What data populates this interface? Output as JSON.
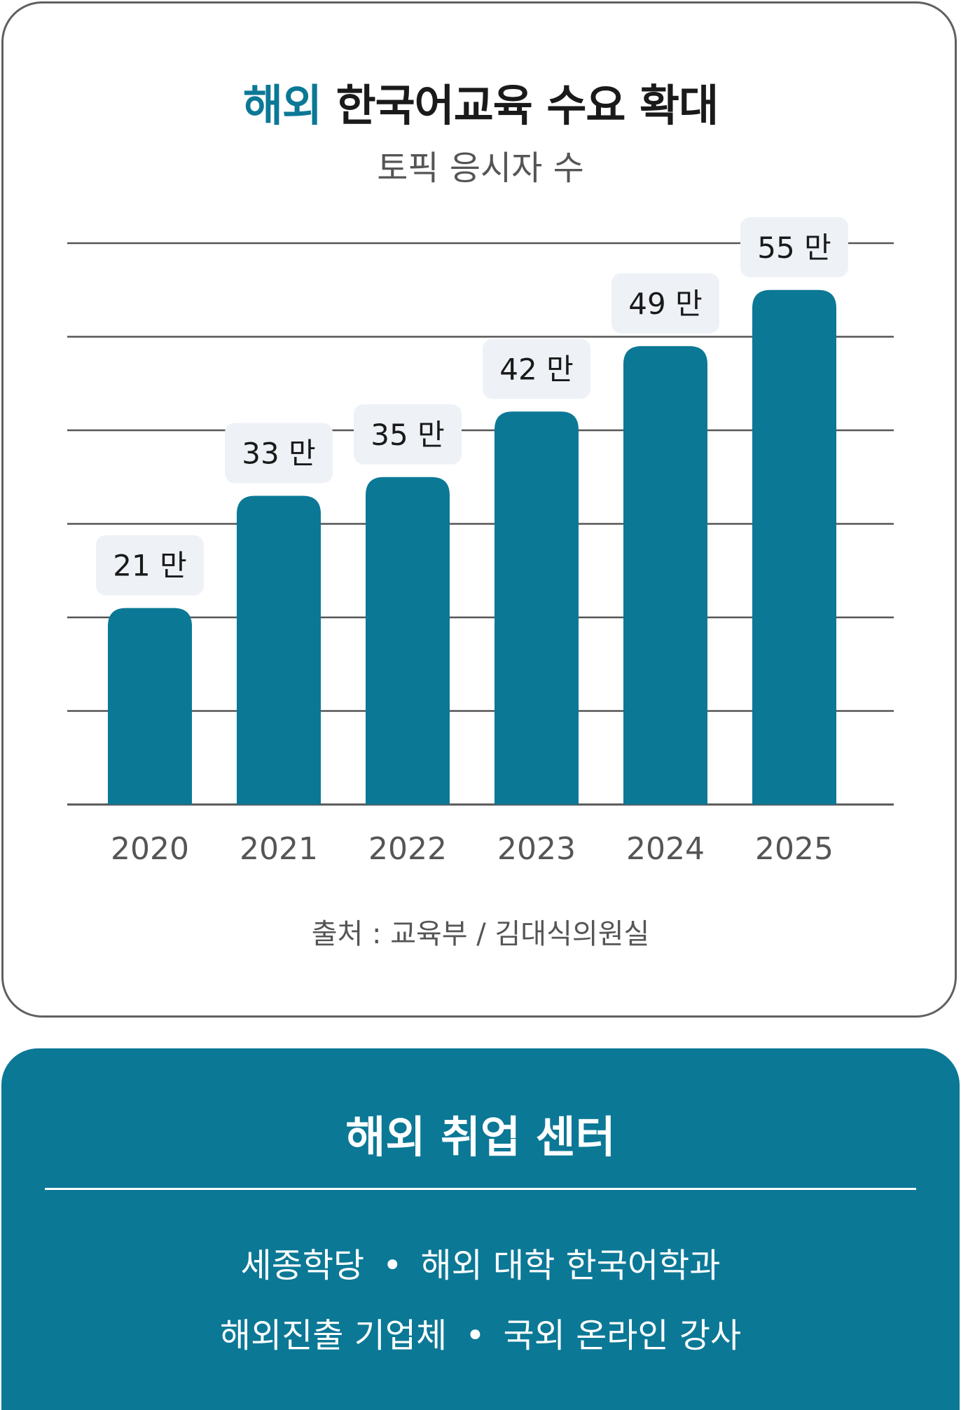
{
  "header": {
    "title_accent": "해외",
    "title_rest": "한국어교육 수요 확대",
    "subtitle": "토픽 응시자 수"
  },
  "chart_data": {
    "type": "bar",
    "categories": [
      "2020",
      "2021",
      "2022",
      "2023",
      "2024",
      "2025"
    ],
    "values": [
      21,
      33,
      35,
      42,
      49,
      55
    ],
    "value_labels": [
      "21 만",
      "33 만",
      "35 만",
      "42 만",
      "49 만",
      "55 만"
    ],
    "ylim": [
      0,
      60
    ],
    "grid": true,
    "legend": "none",
    "xlabel": "",
    "ylabel": ""
  },
  "source": "출처 : 교육부 / 김대식의원실",
  "panel": {
    "title": "해외 취업 센터",
    "line1": [
      "세종학당",
      "해외 대학 한국어학과"
    ],
    "line2": [
      "해외진출 기업체",
      "국외 온라인 강사"
    ],
    "bullet": "•"
  },
  "colors": {
    "accent": "#0b7896",
    "bar": "#0b7896",
    "label_bg": "#eef2f7",
    "grid": "#555555"
  }
}
